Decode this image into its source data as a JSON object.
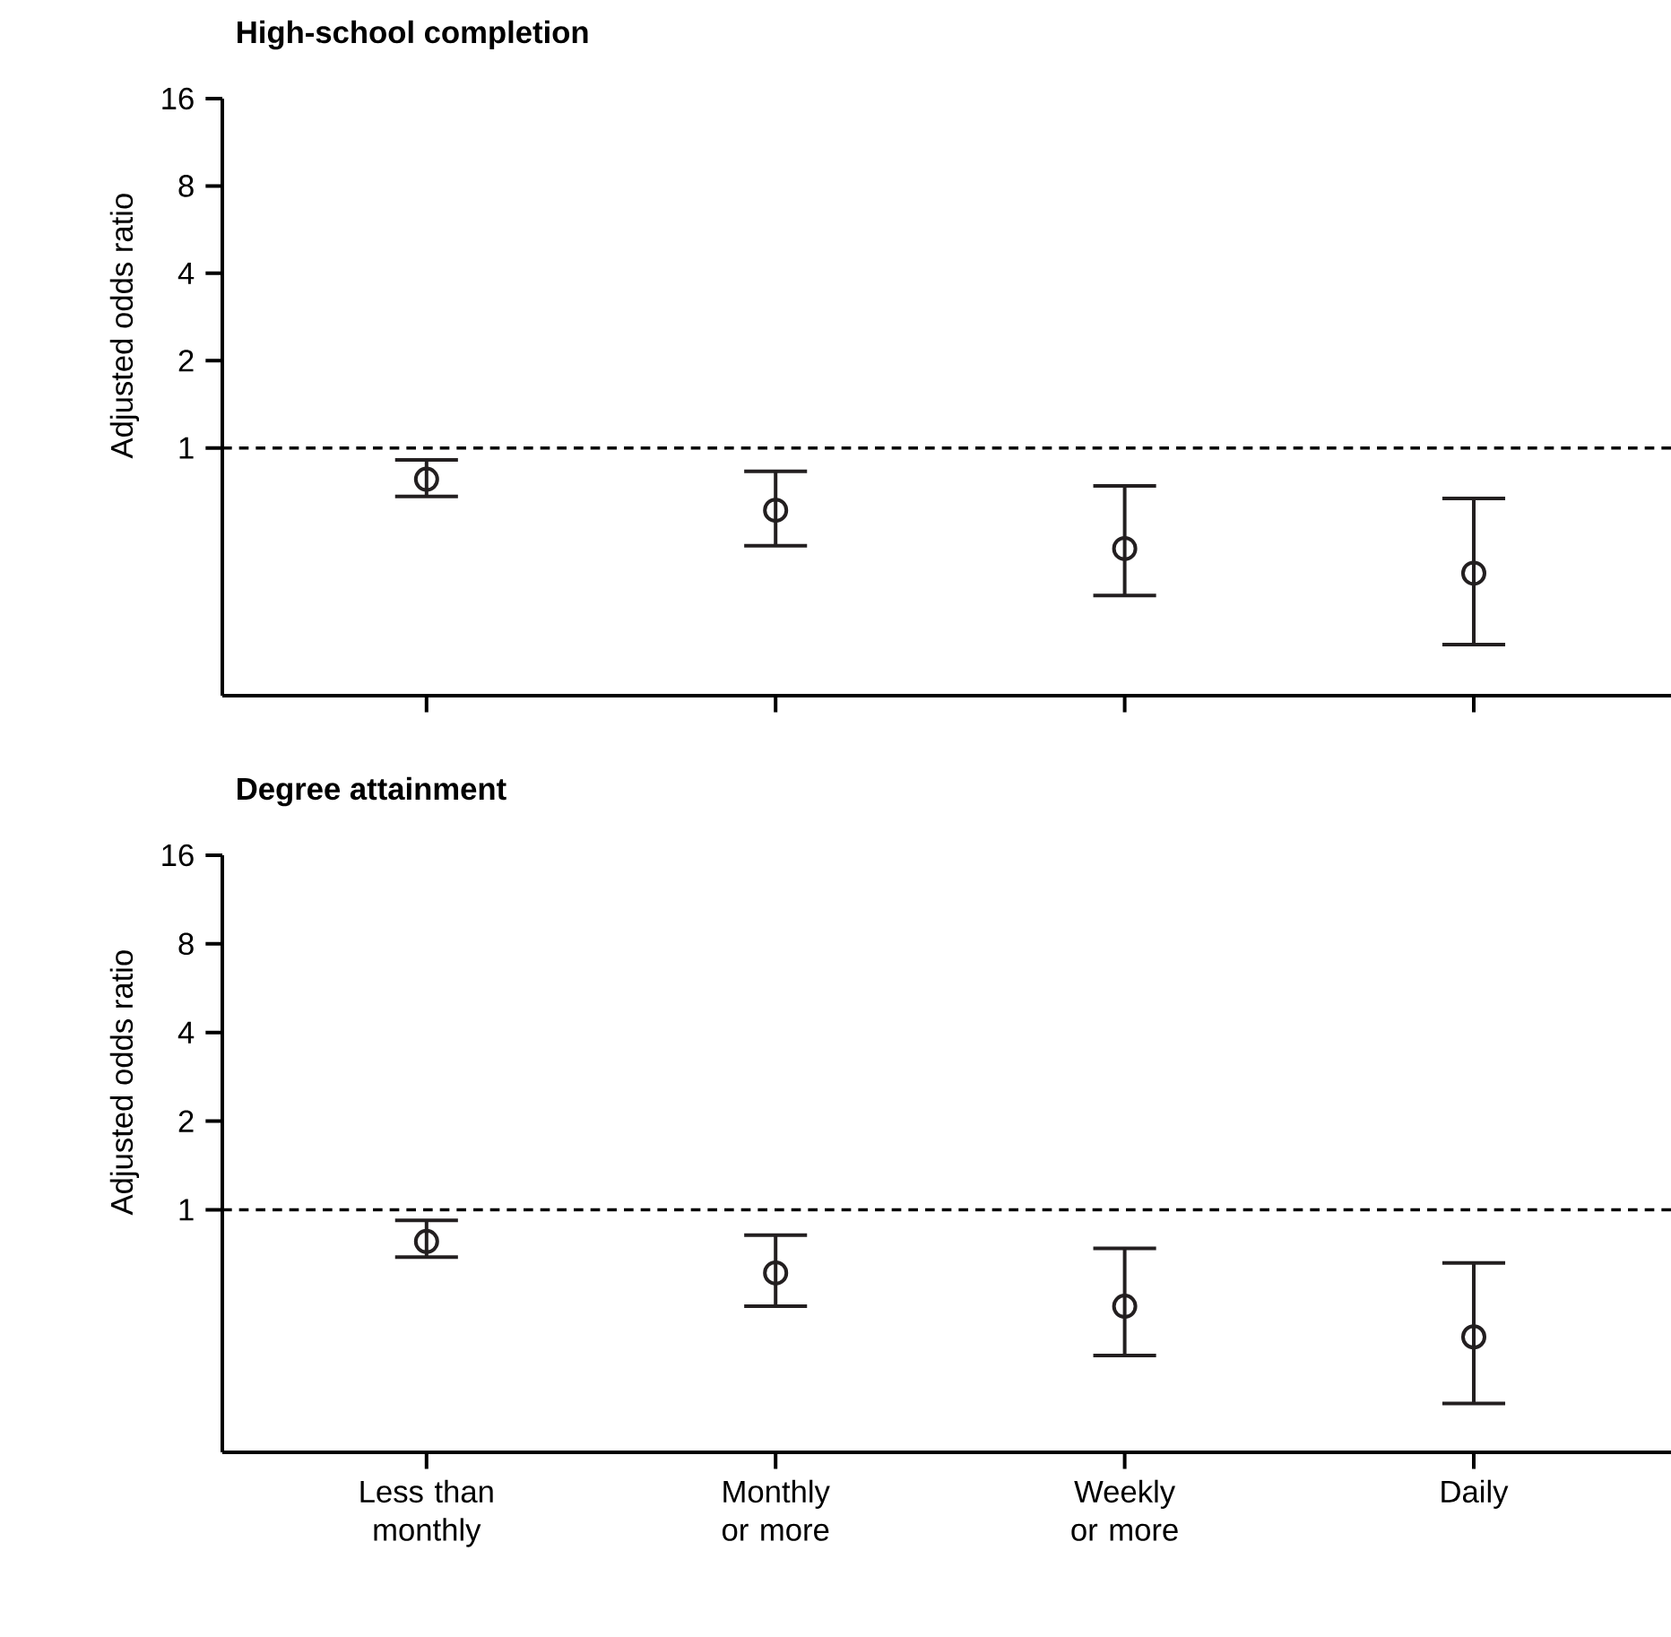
{
  "chart_data": [
    {
      "type": "scatter",
      "title": "High-school completion",
      "ylabel": "Adjusted odds ratio",
      "categories": [
        null,
        null,
        null,
        null
      ],
      "values": [
        0.78,
        0.61,
        0.45,
        0.37
      ],
      "errors": [
        [
          0.68,
          0.91
        ],
        [
          0.46,
          0.83
        ],
        [
          0.31,
          0.74
        ],
        [
          0.21,
          0.67
        ]
      ],
      "color": "#231f20",
      "log": true,
      "ylim": [
        0.14,
        16
      ],
      "yticks": [
        1,
        2,
        4,
        8,
        16
      ],
      "marker": "circle",
      "tick_labels": "y",
      "ref_lines": [
        {
          "axis": "y",
          "value": 1,
          "line_style": "dashed"
        }
      ]
    },
    {
      "type": "scatter",
      "title": "Degree attainment",
      "ylabel": "Adjusted odds ratio",
      "categories": [
        "Less than monthly",
        "Monthly or more",
        "Weekly or more",
        "Daily"
      ],
      "values": [
        0.78,
        0.61,
        0.47,
        0.37
      ],
      "errors": [
        [
          0.69,
          0.92
        ],
        [
          0.47,
          0.82
        ],
        [
          0.32,
          0.74
        ],
        [
          0.22,
          0.66
        ]
      ],
      "color": "#231f20",
      "log": true,
      "ylim": [
        0.15,
        16
      ],
      "yticks": [
        1,
        2,
        4,
        8,
        16
      ],
      "marker": "circle",
      "ref_lines": [
        {
          "axis": "y",
          "value": 1,
          "line_style": "dashed"
        }
      ]
    }
  ]
}
